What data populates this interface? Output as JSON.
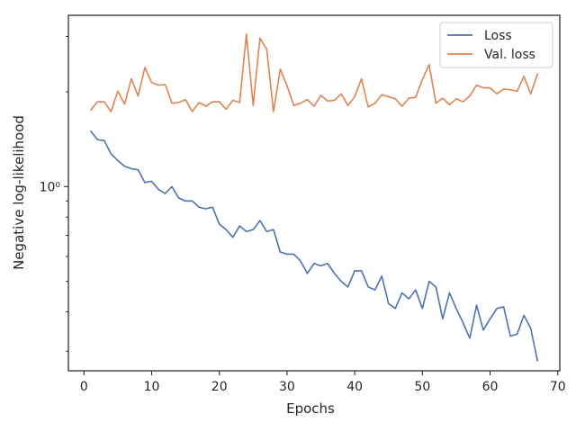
{
  "chart_data": {
    "type": "line",
    "title": "",
    "xlabel": "Epochs",
    "ylabel": "Negative log-likelihood",
    "xlim": [
      -2.3,
      70.3
    ],
    "ylim": [
      0.26,
      3.5
    ],
    "yscale": "log",
    "x_ticks": [
      0,
      10,
      20,
      30,
      40,
      50,
      60,
      70
    ],
    "y_tick_label": "10⁰",
    "y_tick_value": 1,
    "grid": false,
    "legend_position": "top-right",
    "x": [
      1,
      2,
      3,
      4,
      5,
      6,
      7,
      8,
      9,
      10,
      11,
      12,
      13,
      14,
      15,
      16,
      17,
      18,
      19,
      20,
      21,
      22,
      23,
      24,
      25,
      26,
      27,
      28,
      29,
      30,
      31,
      32,
      33,
      34,
      35,
      36,
      37,
      38,
      39,
      40,
      41,
      42,
      43,
      44,
      45,
      46,
      47,
      48,
      49,
      50,
      51,
      52,
      53,
      54,
      55,
      56,
      57,
      58,
      59,
      60,
      61,
      62,
      63,
      64,
      65,
      66,
      67
    ],
    "series": [
      {
        "name": "Loss",
        "color": "#4c72b0",
        "values": [
          1.5,
          1.41,
          1.4,
          1.27,
          1.21,
          1.16,
          1.14,
          1.13,
          1.03,
          1.04,
          0.98,
          0.95,
          1.0,
          0.92,
          0.9,
          0.9,
          0.86,
          0.85,
          0.86,
          0.76,
          0.73,
          0.69,
          0.75,
          0.72,
          0.73,
          0.78,
          0.72,
          0.73,
          0.62,
          0.61,
          0.61,
          0.58,
          0.53,
          0.57,
          0.56,
          0.57,
          0.53,
          0.5,
          0.48,
          0.54,
          0.54,
          0.48,
          0.47,
          0.52,
          0.425,
          0.41,
          0.46,
          0.44,
          0.47,
          0.41,
          0.5,
          0.48,
          0.38,
          0.46,
          0.41,
          0.37,
          0.33,
          0.42,
          0.35,
          0.38,
          0.41,
          0.415,
          0.335,
          0.34,
          0.39,
          0.355,
          0.28
        ]
      },
      {
        "name": "Val. loss",
        "color": "#dd8452",
        "values": [
          1.75,
          1.86,
          1.86,
          1.73,
          2.01,
          1.83,
          2.2,
          1.94,
          2.39,
          2.14,
          2.1,
          2.11,
          1.84,
          1.85,
          1.89,
          1.73,
          1.85,
          1.8,
          1.86,
          1.86,
          1.76,
          1.88,
          1.85,
          3.05,
          1.81,
          2.96,
          2.73,
          1.73,
          2.36,
          2.09,
          1.81,
          1.84,
          1.89,
          1.8,
          1.95,
          1.87,
          1.88,
          1.97,
          1.81,
          1.93,
          2.2,
          1.79,
          1.84,
          1.96,
          1.93,
          1.9,
          1.8,
          1.91,
          1.92,
          2.19,
          2.44,
          1.84,
          1.91,
          1.82,
          1.9,
          1.86,
          1.94,
          2.1,
          2.06,
          2.06,
          1.97,
          2.04,
          2.03,
          2.01,
          2.24,
          1.97,
          2.28
        ]
      }
    ]
  }
}
